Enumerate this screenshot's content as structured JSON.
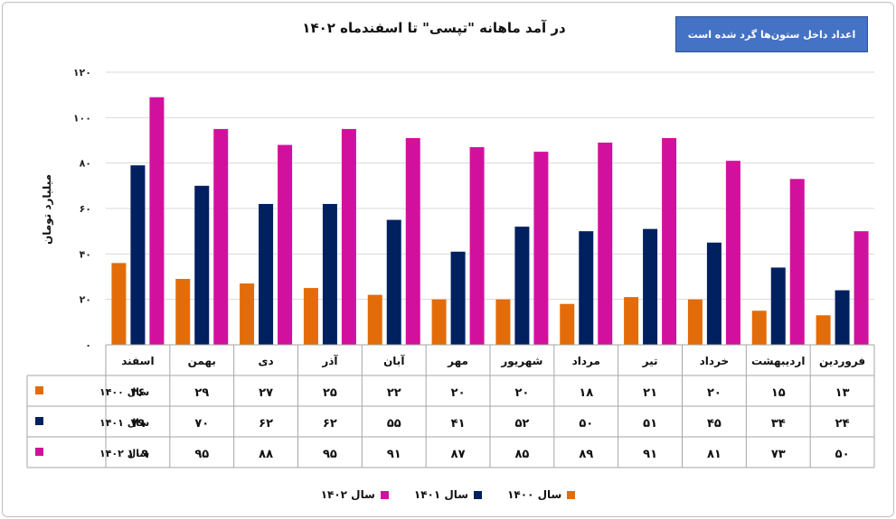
{
  "chart_data": {
    "type": "bar",
    "title": "در آمد ماهانه \"تپسی\" تا اسفندماه ۱۴۰۲",
    "ylabel": "میلیارد تومان",
    "note": "اعداد داخل ستون‌ها گرد شده است",
    "ylim": [
      0,
      120
    ],
    "yticks": [
      0,
      20,
      40,
      60,
      80,
      100,
      120
    ],
    "ytick_labels": [
      "۰",
      "۲۰",
      "۴۰",
      "۶۰",
      "۸۰",
      "۱۰۰",
      "۱۲۰"
    ],
    "grid": true,
    "legend_position": "bottom",
    "categories": [
      "فروردین",
      "اردیبهشت",
      "خرداد",
      "تیر",
      "مرداد",
      "شهریور",
      "مهر",
      "آبان",
      "آذر",
      "دی",
      "بهمن",
      "اسفند"
    ],
    "series": [
      {
        "name": "سال ۱۴۰۰",
        "color": "#e36c0a",
        "values": [
          13,
          15,
          20,
          21,
          18,
          20,
          20,
          22,
          25,
          27,
          29,
          36
        ],
        "labels": [
          "۱۳",
          "۱۵",
          "۲۰",
          "۲۱",
          "۱۸",
          "۲۰",
          "۲۰",
          "۲۲",
          "۲۵",
          "۲۷",
          "۲۹",
          "۳۶"
        ]
      },
      {
        "name": "سال ۱۴۰۱",
        "color": "#002060",
        "values": [
          24,
          34,
          45,
          51,
          50,
          52,
          41,
          55,
          62,
          62,
          70,
          79
        ],
        "labels": [
          "۲۴",
          "۳۴",
          "۴۵",
          "۵۱",
          "۵۰",
          "۵۲",
          "۴۱",
          "۵۵",
          "۶۲",
          "۶۲",
          "۷۰",
          "۷۹"
        ]
      },
      {
        "name": "سال ۱۴۰۲",
        "color": "#d1119e",
        "values": [
          50,
          73,
          81,
          91,
          89,
          85,
          87,
          91,
          95,
          88,
          95,
          109
        ],
        "labels": [
          "۵۰",
          "۷۳",
          "۸۱",
          "۹۱",
          "۸۹",
          "۸۵",
          "۸۷",
          "۹۱",
          "۹۵",
          "۸۸",
          "۹۵",
          "۱۰۹"
        ]
      }
    ]
  }
}
